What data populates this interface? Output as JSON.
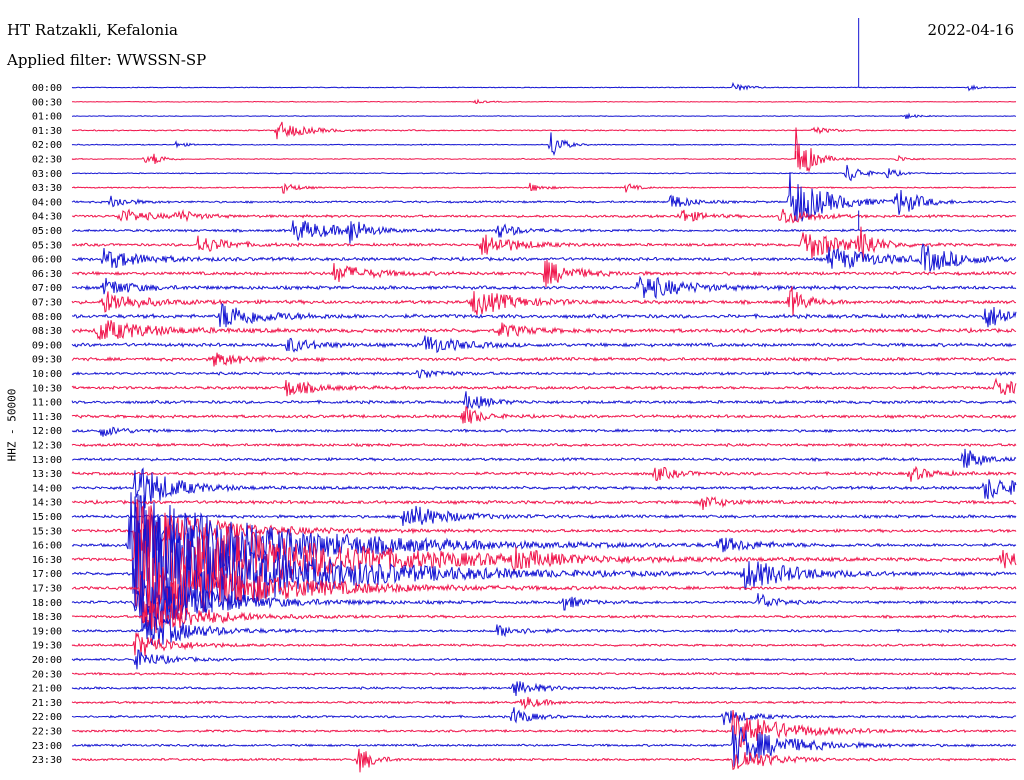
{
  "header": {
    "station": "HT Ratzakli, Kefalonia",
    "filter": "Applied filter: WWSSN-SP",
    "date": "2022-04-16"
  },
  "channel_label": "HHZ - 50000",
  "colors": {
    "blue": "#1414d2",
    "red": "#f0144b"
  },
  "chart_data": {
    "type": "line",
    "title": "HT Ratzakli, Kefalonia",
    "subtitle": "Applied filter: WWSSN-SP",
    "ylabel": "HHZ - 50000",
    "grid": false,
    "rows": [
      "00:00",
      "00:30",
      "01:00",
      "01:30",
      "02:00",
      "02:30",
      "03:00",
      "03:30",
      "04:00",
      "04:30",
      "05:00",
      "05:30",
      "06:00",
      "06:30",
      "07:00",
      "07:30",
      "08:00",
      "08:30",
      "09:00",
      "09:30",
      "10:00",
      "10:30",
      "11:00",
      "11:30",
      "12:00",
      "12:30",
      "13:00",
      "13:30",
      "14:00",
      "14:30",
      "15:00",
      "15:30",
      "16:00",
      "16:30",
      "17:00",
      "17:30",
      "18:00",
      "18:30",
      "19:00",
      "19:30",
      "20:00",
      "20:30",
      "21:00",
      "21:30",
      "22:00",
      "22:30",
      "23:00",
      "23:30"
    ],
    "row_colors": [
      "blue",
      "red"
    ],
    "row_noise_level": [
      0.3,
      0.3,
      0.3,
      0.5,
      0.4,
      0.4,
      0.4,
      0.5,
      0.8,
      1.0,
      1.0,
      1.1,
      1.3,
      1.3,
      1.4,
      1.4,
      1.5,
      1.5,
      1.4,
      1.3,
      1.1,
      1.2,
      1.2,
      1.2,
      1.1,
      1.1,
      1.1,
      1.2,
      1.2,
      1.3,
      1.2,
      1.2,
      1.2,
      1.2,
      1.2,
      1.2,
      1.1,
      1.0,
      1.0,
      0.9,
      0.9,
      0.9,
      0.9,
      0.9,
      0.9,
      0.9,
      0.9,
      0.9
    ],
    "events": [
      {
        "row": 0,
        "minute": 21.0,
        "amp": 5,
        "dur": 0.4
      },
      {
        "row": 0,
        "minute": 28.5,
        "amp": 3,
        "dur": 0.3
      },
      {
        "row": 1,
        "minute": 12.8,
        "amp": 2,
        "dur": 0.3
      },
      {
        "row": 2,
        "minute": 26.5,
        "amp": 3,
        "dur": 0.3
      },
      {
        "row": 3,
        "minute": 6.5,
        "amp": 10,
        "dur": 0.8
      },
      {
        "row": 3,
        "minute": 23.5,
        "amp": 4,
        "dur": 0.5
      },
      {
        "row": 4,
        "minute": 15.2,
        "amp": 18,
        "dur": 0.3
      },
      {
        "row": 4,
        "minute": 3.3,
        "amp": 3,
        "dur": 0.3
      },
      {
        "row": 5,
        "minute": 2.3,
        "amp": 4,
        "dur": 0.3
      },
      {
        "row": 5,
        "minute": 2.6,
        "amp": 5,
        "dur": 0.3
      },
      {
        "row": 5,
        "minute": 23.0,
        "amp": 35,
        "dur": 0.4
      },
      {
        "row": 5,
        "minute": 26.2,
        "amp": 4,
        "dur": 0.3
      },
      {
        "row": 6,
        "minute": 24.6,
        "amp": 12,
        "dur": 0.4
      },
      {
        "row": 6,
        "minute": 25.9,
        "amp": 6,
        "dur": 0.3
      },
      {
        "row": 7,
        "minute": 6.7,
        "amp": 6,
        "dur": 0.4
      },
      {
        "row": 7,
        "minute": 14.5,
        "amp": 5,
        "dur": 0.4
      },
      {
        "row": 7,
        "minute": 17.6,
        "amp": 5,
        "dur": 0.3
      },
      {
        "row": 8,
        "minute": 1.2,
        "amp": 7,
        "dur": 0.5
      },
      {
        "row": 8,
        "minute": 22.8,
        "amp": 30,
        "dur": 1.0
      },
      {
        "row": 8,
        "minute": 26.2,
        "amp": 16,
        "dur": 0.6
      },
      {
        "row": 8,
        "minute": 19.0,
        "amp": 8,
        "dur": 0.6
      },
      {
        "row": 9,
        "minute": 1.5,
        "amp": 8,
        "dur": 0.8
      },
      {
        "row": 9,
        "minute": 3.3,
        "amp": 6,
        "dur": 0.6
      },
      {
        "row": 9,
        "minute": 19.3,
        "amp": 8,
        "dur": 0.6
      },
      {
        "row": 9,
        "minute": 22.5,
        "amp": 10,
        "dur": 0.8
      },
      {
        "row": 10,
        "minute": 7.0,
        "amp": 12,
        "dur": 1.2
      },
      {
        "row": 10,
        "minute": 13.5,
        "amp": 8,
        "dur": 0.6
      },
      {
        "row": 10,
        "minute": 8.8,
        "amp": 15,
        "dur": 0.4
      },
      {
        "row": 11,
        "minute": 4.0,
        "amp": 10,
        "dur": 0.8
      },
      {
        "row": 11,
        "minute": 13.0,
        "amp": 12,
        "dur": 1.0
      },
      {
        "row": 11,
        "minute": 23.2,
        "amp": 18,
        "dur": 1.0
      },
      {
        "row": 11,
        "minute": 25.0,
        "amp": 20,
        "dur": 0.4
      },
      {
        "row": 12,
        "minute": 1.0,
        "amp": 10,
        "dur": 1.2
      },
      {
        "row": 12,
        "minute": 24.0,
        "amp": 12,
        "dur": 1.5
      },
      {
        "row": 12,
        "minute": 27.0,
        "amp": 14,
        "dur": 1.0
      },
      {
        "row": 13,
        "minute": 8.3,
        "amp": 10,
        "dur": 1.0
      },
      {
        "row": 13,
        "minute": 15.0,
        "amp": 14,
        "dur": 0.8
      },
      {
        "row": 14,
        "minute": 18.0,
        "amp": 14,
        "dur": 1.2
      },
      {
        "row": 14,
        "minute": 1.0,
        "amp": 10,
        "dur": 0.8
      },
      {
        "row": 15,
        "minute": 12.7,
        "amp": 14,
        "dur": 1.2
      },
      {
        "row": 15,
        "minute": 1.0,
        "amp": 12,
        "dur": 1.0
      },
      {
        "row": 15,
        "minute": 22.8,
        "amp": 18,
        "dur": 0.4
      },
      {
        "row": 16,
        "minute": 4.7,
        "amp": 14,
        "dur": 1.2
      },
      {
        "row": 16,
        "minute": 29.0,
        "amp": 12,
        "dur": 1.0
      },
      {
        "row": 17,
        "minute": 0.8,
        "amp": 12,
        "dur": 1.5
      },
      {
        "row": 17,
        "minute": 13.5,
        "amp": 8,
        "dur": 0.8
      },
      {
        "row": 18,
        "minute": 11.2,
        "amp": 10,
        "dur": 1.0
      },
      {
        "row": 18,
        "minute": 6.8,
        "amp": 8,
        "dur": 0.8
      },
      {
        "row": 19,
        "minute": 4.5,
        "amp": 8,
        "dur": 0.8
      },
      {
        "row": 20,
        "minute": 11.0,
        "amp": 6,
        "dur": 0.6
      },
      {
        "row": 21,
        "minute": 6.8,
        "amp": 9,
        "dur": 0.8
      },
      {
        "row": 21,
        "minute": 29.3,
        "amp": 10,
        "dur": 0.8
      },
      {
        "row": 22,
        "minute": 12.5,
        "amp": 10,
        "dur": 0.6
      },
      {
        "row": 23,
        "minute": 12.4,
        "amp": 12,
        "dur": 0.5
      },
      {
        "row": 24,
        "minute": 0.9,
        "amp": 6,
        "dur": 0.6
      },
      {
        "row": 26,
        "minute": 28.3,
        "amp": 14,
        "dur": 0.5
      },
      {
        "row": 27,
        "minute": 18.5,
        "amp": 8,
        "dur": 0.6
      },
      {
        "row": 27,
        "minute": 26.6,
        "amp": 8,
        "dur": 0.6
      },
      {
        "row": 28,
        "minute": 2.0,
        "amp": 28,
        "dur": 1.0
      },
      {
        "row": 28,
        "minute": 29.0,
        "amp": 12,
        "dur": 1.2
      },
      {
        "row": 29,
        "minute": 20.0,
        "amp": 8,
        "dur": 0.6
      },
      {
        "row": 30,
        "minute": 10.5,
        "amp": 14,
        "dur": 1.2
      },
      {
        "row": 31,
        "minute": 2.0,
        "amp": 34,
        "dur": 2.0
      },
      {
        "row": 32,
        "minute": 1.8,
        "amp": 55,
        "dur": 4.0
      },
      {
        "row": 32,
        "minute": 20.5,
        "amp": 8,
        "dur": 1.0
      },
      {
        "row": 33,
        "minute": 2.0,
        "amp": 60,
        "dur": 4.5
      },
      {
        "row": 33,
        "minute": 14.0,
        "amp": 8,
        "dur": 1.0
      },
      {
        "row": 33,
        "minute": 29.5,
        "amp": 10,
        "dur": 1.0
      },
      {
        "row": 34,
        "minute": 2.0,
        "amp": 70,
        "dur": 4.0
      },
      {
        "row": 34,
        "minute": 21.3,
        "amp": 16,
        "dur": 1.5
      },
      {
        "row": 35,
        "minute": 2.2,
        "amp": 45,
        "dur": 3.0
      },
      {
        "row": 36,
        "minute": 2.0,
        "amp": 35,
        "dur": 2.0
      },
      {
        "row": 36,
        "minute": 15.5,
        "amp": 10,
        "dur": 0.5
      },
      {
        "row": 36,
        "minute": 21.8,
        "amp": 10,
        "dur": 0.5
      },
      {
        "row": 37,
        "minute": 2.3,
        "amp": 25,
        "dur": 1.5
      },
      {
        "row": 38,
        "minute": 2.3,
        "amp": 22,
        "dur": 1.2
      },
      {
        "row": 38,
        "minute": 13.5,
        "amp": 6,
        "dur": 0.8
      },
      {
        "row": 39,
        "minute": 2.0,
        "amp": 14,
        "dur": 1.0
      },
      {
        "row": 40,
        "minute": 2.0,
        "amp": 10,
        "dur": 0.8
      },
      {
        "row": 42,
        "minute": 14.0,
        "amp": 8,
        "dur": 0.8
      },
      {
        "row": 43,
        "minute": 14.3,
        "amp": 8,
        "dur": 0.5
      },
      {
        "row": 44,
        "minute": 14.0,
        "amp": 10,
        "dur": 0.5
      },
      {
        "row": 44,
        "minute": 20.7,
        "amp": 8,
        "dur": 0.8
      },
      {
        "row": 45,
        "minute": 21.0,
        "amp": 20,
        "dur": 1.5
      },
      {
        "row": 46,
        "minute": 21.0,
        "amp": 22,
        "dur": 1.5
      },
      {
        "row": 47,
        "minute": 9.1,
        "amp": 16,
        "dur": 0.4
      },
      {
        "row": 47,
        "minute": 21.0,
        "amp": 15,
        "dur": 1.0
      }
    ],
    "spikes": [
      {
        "row": 0,
        "minute": 25.0,
        "up": 70,
        "down": 0
      },
      {
        "row": 5,
        "minute": 23.0,
        "up": 8,
        "down": 0
      },
      {
        "row": 10,
        "minute": 25.0,
        "up": 20,
        "down": 0
      }
    ]
  }
}
